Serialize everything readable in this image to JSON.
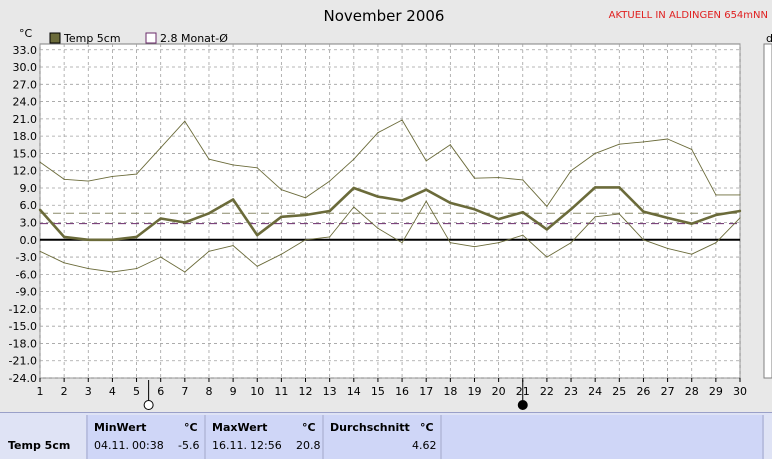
{
  "header": {
    "title": "November 2006",
    "station": "AKTUELL IN ALDINGEN 654mNN",
    "unit_left": "°C",
    "unit_right_partial": "d"
  },
  "legend": [
    {
      "label": "Temp 5cm",
      "color": "#6b6b3a"
    },
    {
      "label": "2.8 Monat-Ø",
      "color": "#6a2a6a"
    }
  ],
  "chart_data": {
    "type": "line",
    "title": "November 2006",
    "ylabel": "°C",
    "ylim": [
      -24.0,
      34.0
    ],
    "xlim": [
      1,
      30
    ],
    "x": [
      1,
      2,
      3,
      4,
      5,
      6,
      7,
      8,
      9,
      10,
      11,
      12,
      13,
      14,
      15,
      16,
      17,
      18,
      19,
      20,
      21,
      22,
      23,
      24,
      25,
      26,
      27,
      28,
      29,
      30
    ],
    "yticks": [
      "33.0",
      "30.0",
      "27.0",
      "24.0",
      "21.0",
      "18.0",
      "15.0",
      "12.0",
      "9.0",
      "6.0",
      "3.0",
      "0.0",
      "-3.0",
      "-6.0",
      "-9.0",
      "-12.0",
      "-15.0",
      "-18.0",
      "-21.0",
      "-24.0"
    ],
    "xticks": [
      "1",
      "2",
      "3",
      "4",
      "5",
      "6",
      "7",
      "8",
      "9",
      "10",
      "11",
      "12",
      "13",
      "14",
      "15",
      "16",
      "17",
      "18",
      "19",
      "20",
      "21",
      "22",
      "23",
      "24",
      "25",
      "26",
      "27",
      "28",
      "29",
      "30"
    ],
    "grid": true,
    "legend_position": "top-left",
    "series": [
      {
        "name": "Temp 5cm",
        "role": "mean",
        "color": "#6b6b3a",
        "values": [
          5.2,
          0.5,
          0.0,
          0.0,
          0.5,
          3.7,
          3.0,
          4.6,
          7.0,
          0.8,
          4.0,
          4.3,
          5.0,
          9.0,
          7.5,
          6.8,
          8.7,
          6.4,
          5.3,
          3.6,
          4.8,
          1.8,
          5.3,
          9.1,
          9.1,
          4.9,
          3.8,
          2.8,
          4.3,
          5.0
        ]
      },
      {
        "name": "",
        "role": "max",
        "color": "#6b6b3a",
        "values": [
          13.5,
          10.5,
          10.2,
          11.0,
          11.4,
          16.0,
          20.6,
          14.0,
          13.0,
          12.5,
          8.7,
          7.3,
          10.2,
          14.0,
          18.6,
          20.8,
          13.7,
          16.5,
          10.7,
          10.8,
          10.4,
          5.8,
          12.0,
          15.0,
          16.6,
          17.0,
          17.5,
          15.7,
          7.8,
          7.8
        ]
      },
      {
        "name": "",
        "role": "min",
        "color": "#6b6b3a",
        "values": [
          -2.0,
          -4.0,
          -5.0,
          -5.6,
          -5.0,
          -3.0,
          -5.6,
          -2.0,
          -1.0,
          -4.6,
          -2.5,
          0.0,
          0.5,
          5.7,
          2.0,
          -0.5,
          6.7,
          -0.5,
          -1.2,
          -0.5,
          0.8,
          -3.0,
          -0.5,
          4.0,
          4.5,
          0.0,
          -1.5,
          -2.5,
          -0.5,
          3.8
        ]
      }
    ],
    "reference_lines": [
      {
        "label": "2.8 Monat-Ø",
        "value": 2.8,
        "color": "#6a2a6a",
        "style": "dashed"
      },
      {
        "label": "",
        "value": 4.62,
        "color": "#8a8a6a",
        "style": "dashed"
      },
      {
        "label": "",
        "value": 0.0,
        "color": "#000000",
        "style": "solid"
      }
    ],
    "moon_phases": [
      {
        "day": 5.5,
        "phase": "full"
      },
      {
        "day": 21,
        "phase": "new"
      }
    ]
  },
  "stats": {
    "row_label": "Temp 5cm",
    "min": {
      "title": "MinWert",
      "unit": "°C",
      "date": "04.11.",
      "time": "00:38",
      "value": "-5.6"
    },
    "max": {
      "title": "MaxWert",
      "unit": "°C",
      "date": "16.11.",
      "time": "12:56",
      "value": "20.8"
    },
    "avg": {
      "title": "Durchschnitt",
      "unit": "°C",
      "value": "4.62"
    }
  }
}
